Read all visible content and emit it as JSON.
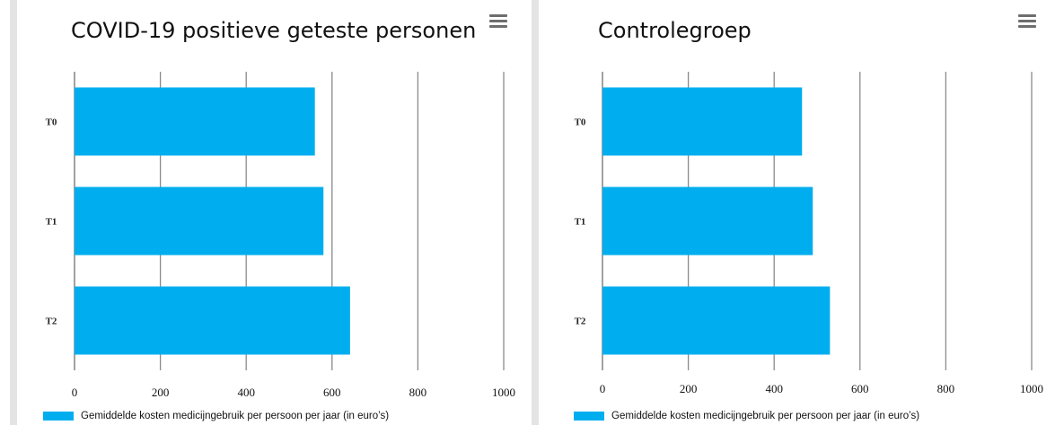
{
  "colors": {
    "bar": "#00aeef",
    "grid": "#8a8a8a",
    "menu_icon": "#6e6e6e"
  },
  "icons": {
    "menu": "hamburger-menu-icon"
  },
  "chart_data": [
    {
      "type": "bar",
      "orientation": "horizontal",
      "title": "COVID-19 positieve geteste personen",
      "categories": [
        "T0",
        "T1",
        "T2"
      ],
      "series": [
        {
          "name": "Gemiddelde kosten medicijngebruik per persoon per jaar (in euro’s)",
          "values": [
            560,
            580,
            642
          ]
        }
      ],
      "xticks": [
        "0",
        "200",
        "400",
        "600",
        "800",
        "1000"
      ],
      "xlim": [
        0,
        1000
      ],
      "grid": true,
      "legend": "bottom-left"
    },
    {
      "type": "bar",
      "orientation": "horizontal",
      "title": "Controlegroep",
      "categories": [
        "T0",
        "T1",
        "T2"
      ],
      "series": [
        {
          "name": "Gemiddelde kosten medicijngebruik per persoon per jaar (in euro’s)",
          "values": [
            465,
            490,
            530
          ]
        }
      ],
      "xticks": [
        "0",
        "200",
        "400",
        "600",
        "800",
        "1000"
      ],
      "xlim": [
        0,
        1000
      ],
      "grid": true,
      "legend": "bottom-left"
    }
  ]
}
